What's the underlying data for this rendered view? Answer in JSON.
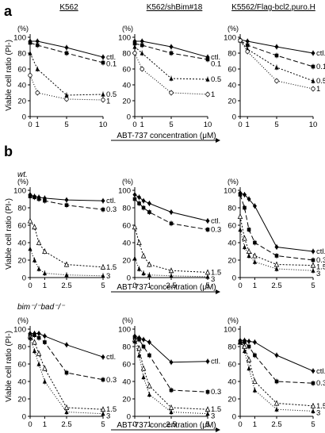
{
  "panel_labels": {
    "a": "a",
    "b": "b"
  },
  "section_labels": {
    "wt": "wt.",
    "bimbad": "bim⁻/⁻bad⁻/⁻"
  },
  "column_titles": [
    "K562",
    "K562/shBim#18",
    "K5562/Flag-bcl2.puro.H"
  ],
  "ylabel": "Viable cell ratio (PI-)",
  "yunit": "(%)",
  "xlabel": "ABT-737 concentration (μM)",
  "chart_data": [
    {
      "id": "a1",
      "type": "line",
      "title": "K562",
      "x": [
        0,
        1,
        5,
        10
      ],
      "ylim": [
        0,
        100
      ],
      "xticks": [
        0,
        1,
        5,
        10
      ],
      "yticks": [
        0,
        20,
        40,
        60,
        80,
        100
      ],
      "series": [
        {
          "name": "ctl.",
          "marker": "diamond",
          "dash": "",
          "values": [
            95,
            95,
            87,
            75
          ]
        },
        {
          "name": "0.1",
          "marker": "square",
          "dash": "6,3",
          "values": [
            93,
            90,
            80,
            68
          ]
        },
        {
          "name": "0.5",
          "marker": "triangle",
          "dash": "2,2",
          "values": [
            80,
            60,
            27,
            28
          ]
        },
        {
          "name": "1",
          "marker": "circle",
          "dash": "1,2",
          "values": [
            52,
            30,
            22,
            21
          ]
        }
      ]
    },
    {
      "id": "a2",
      "type": "line",
      "title": "K562/shBim#18",
      "x": [
        0,
        1,
        5,
        10
      ],
      "ylim": [
        0,
        100
      ],
      "xticks": [
        0,
        1,
        5,
        10
      ],
      "yticks": [
        0,
        20,
        40,
        60,
        80,
        100
      ],
      "series": [
        {
          "name": "ctl.",
          "marker": "diamond",
          "dash": "",
          "values": [
            95,
            95,
            88,
            75
          ]
        },
        {
          "name": "0.1",
          "marker": "square",
          "dash": "6,3",
          "values": [
            92,
            90,
            80,
            72
          ]
        },
        {
          "name": "0.5",
          "marker": "triangle",
          "dash": "2,2",
          "values": [
            88,
            80,
            48,
            47
          ]
        },
        {
          "name": "1",
          "marker": "circle",
          "dash": "1,2",
          "values": [
            80,
            60,
            30,
            28
          ]
        }
      ]
    },
    {
      "id": "a3",
      "type": "line",
      "title": "K5562/Flag-bcl2.puro.H",
      "x": [
        0,
        1,
        5,
        10
      ],
      "ylim": [
        0,
        100
      ],
      "xticks": [
        0,
        1,
        5,
        10
      ],
      "yticks": [
        0,
        20,
        40,
        60,
        80,
        100
      ],
      "series": [
        {
          "name": "ctl.",
          "marker": "diamond",
          "dash": "",
          "values": [
            97,
            95,
            88,
            80
          ]
        },
        {
          "name": "0.1",
          "marker": "square",
          "dash": "6,3",
          "values": [
            96,
            90,
            77,
            63
          ]
        },
        {
          "name": "0.5",
          "marker": "triangle",
          "dash": "2,2",
          "values": [
            96,
            85,
            62,
            45
          ]
        },
        {
          "name": "1",
          "marker": "circle",
          "dash": "1,2",
          "values": [
            96,
            82,
            45,
            35
          ]
        }
      ]
    },
    {
      "id": "b1",
      "type": "line",
      "title": "",
      "x": [
        0,
        0.3,
        0.6,
        1,
        2.5,
        5
      ],
      "ylim": [
        0,
        100
      ],
      "xticks": [
        0,
        1,
        2.5,
        5
      ],
      "yticks": [
        0,
        20,
        40,
        60,
        80,
        100
      ],
      "series": [
        {
          "name": "ctl.",
          "marker": "diamond",
          "dash": "",
          "values": [
            95,
            93,
            92,
            91,
            89,
            88
          ]
        },
        {
          "name": "0.3",
          "marker": "square",
          "dash": "6,3",
          "values": [
            93,
            92,
            90,
            88,
            83,
            78
          ]
        },
        {
          "name": "1.5",
          "marker": "triangle-open",
          "dash": "2,2",
          "values": [
            65,
            58,
            40,
            30,
            15,
            12
          ]
        },
        {
          "name": "3",
          "marker": "triangle",
          "dash": "1,2",
          "values": [
            33,
            20,
            10,
            5,
            3,
            2
          ]
        }
      ]
    },
    {
      "id": "b2",
      "type": "line",
      "title": "",
      "x": [
        0,
        0.3,
        0.6,
        1,
        2.5,
        5
      ],
      "ylim": [
        0,
        100
      ],
      "xticks": [
        0,
        1,
        2.5,
        5
      ],
      "yticks": [
        0,
        20,
        40,
        60,
        80,
        100
      ],
      "series": [
        {
          "name": "ctl.",
          "marker": "diamond",
          "dash": "",
          "values": [
            95,
            92,
            88,
            85,
            75,
            65
          ]
        },
        {
          "name": "0.3",
          "marker": "square",
          "dash": "6,3",
          "values": [
            90,
            85,
            80,
            75,
            62,
            55
          ]
        },
        {
          "name": "1.5",
          "marker": "triangle-open",
          "dash": "2,2",
          "values": [
            58,
            40,
            25,
            15,
            8,
            6
          ]
        },
        {
          "name": "3",
          "marker": "triangle",
          "dash": "1,2",
          "values": [
            22,
            10,
            5,
            3,
            2,
            1
          ]
        }
      ]
    },
    {
      "id": "b3",
      "type": "line",
      "title": "",
      "x": [
        0,
        0.3,
        0.6,
        1,
        2.5,
        5
      ],
      "ylim": [
        0,
        100
      ],
      "xticks": [
        0,
        1,
        2.5,
        5
      ],
      "yticks": [
        0,
        20,
        40,
        60,
        80,
        100
      ],
      "series": [
        {
          "name": "ctl.",
          "marker": "diamond",
          "dash": "",
          "values": [
            97,
            95,
            90,
            82,
            35,
            30
          ]
        },
        {
          "name": "0.3",
          "marker": "square",
          "dash": "6,3",
          "values": [
            95,
            80,
            55,
            40,
            25,
            20
          ]
        },
        {
          "name": "1.5",
          "marker": "triangle-open",
          "dash": "2,2",
          "values": [
            70,
            45,
            30,
            25,
            15,
            14
          ]
        },
        {
          "name": "3",
          "marker": "triangle",
          "dash": "1,2",
          "values": [
            55,
            35,
            25,
            18,
            10,
            8
          ]
        }
      ]
    },
    {
      "id": "c1",
      "type": "line",
      "title": "",
      "x": [
        0,
        0.3,
        0.6,
        1,
        2.5,
        5
      ],
      "ylim": [
        0,
        100
      ],
      "xticks": [
        0,
        1,
        2.5,
        5
      ],
      "yticks": [
        0,
        20,
        40,
        60,
        80,
        100
      ],
      "series": [
        {
          "name": "ctl.",
          "marker": "diamond",
          "dash": "",
          "values": [
            95,
            95,
            95,
            92,
            82,
            68
          ]
        },
        {
          "name": "0.3",
          "marker": "square",
          "dash": "6,3",
          "values": [
            93,
            93,
            90,
            85,
            50,
            42
          ]
        },
        {
          "name": "1.5",
          "marker": "triangle-open",
          "dash": "2,2",
          "values": [
            92,
            85,
            72,
            55,
            10,
            8
          ]
        },
        {
          "name": "3",
          "marker": "triangle",
          "dash": "1,2",
          "values": [
            90,
            75,
            60,
            40,
            5,
            3
          ]
        }
      ]
    },
    {
      "id": "c2",
      "type": "line",
      "title": "",
      "x": [
        0,
        0.3,
        0.6,
        1,
        2.5,
        5
      ],
      "ylim": [
        0,
        100
      ],
      "xticks": [
        0,
        1,
        2.5,
        5
      ],
      "yticks": [
        0,
        20,
        40,
        60,
        80,
        100
      ],
      "series": [
        {
          "name": "ctl.",
          "marker": "diamond",
          "dash": "",
          "values": [
            92,
            90,
            88,
            85,
            62,
            63
          ]
        },
        {
          "name": "0.3",
          "marker": "square",
          "dash": "6,3",
          "values": [
            90,
            88,
            80,
            70,
            30,
            28
          ]
        },
        {
          "name": "1.5",
          "marker": "triangle-open",
          "dash": "2,2",
          "values": [
            88,
            78,
            55,
            35,
            10,
            8
          ]
        },
        {
          "name": "3",
          "marker": "triangle",
          "dash": "1,2",
          "values": [
            86,
            70,
            45,
            25,
            5,
            3
          ]
        }
      ]
    },
    {
      "id": "c3",
      "type": "line",
      "title": "",
      "x": [
        0,
        0.3,
        0.6,
        1,
        2.5,
        5
      ],
      "ylim": [
        0,
        100
      ],
      "xticks": [
        0,
        1,
        2.5,
        5
      ],
      "yticks": [
        0,
        20,
        40,
        60,
        80,
        100
      ],
      "series": [
        {
          "name": "ctl.",
          "marker": "diamond",
          "dash": "",
          "values": [
            87,
            87,
            86,
            85,
            70,
            52
          ]
        },
        {
          "name": "0.3",
          "marker": "square",
          "dash": "6,3",
          "values": [
            85,
            85,
            80,
            70,
            40,
            38
          ]
        },
        {
          "name": "1.5",
          "marker": "triangle-open",
          "dash": "2,2",
          "values": [
            85,
            80,
            65,
            40,
            15,
            12
          ]
        },
        {
          "name": "3",
          "marker": "triangle",
          "dash": "1,2",
          "values": [
            85,
            75,
            55,
            30,
            8,
            6
          ]
        }
      ]
    }
  ]
}
